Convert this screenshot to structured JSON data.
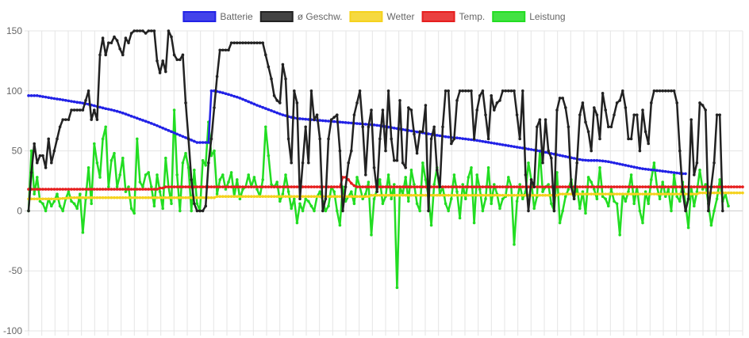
{
  "chart_data": {
    "type": "line",
    "legend_position": "top",
    "grid": true,
    "ylim": [
      -100,
      150
    ],
    "yticks": [
      -100,
      -50,
      0,
      50,
      100,
      150
    ],
    "xlabel": "",
    "ylabel": "",
    "title": "",
    "series": [
      {
        "name": "Batterie",
        "color": "#2222e6",
        "values": [
          96,
          96,
          96,
          96,
          95.6,
          95.2,
          94.8,
          94.4,
          94,
          93.6,
          93.2,
          92.9,
          92.5,
          92.1,
          91.7,
          91.3,
          90.9,
          90.5,
          90.2,
          89.8,
          89.3,
          88.8,
          88.2,
          87.6,
          87,
          86.4,
          85.8,
          85.2,
          84.7,
          84.2,
          83.6,
          83,
          82.3,
          81.5,
          80.7,
          79.8,
          78.9,
          78.1,
          77.2,
          76.3,
          75.5,
          74.7,
          73.8,
          72.9,
          72,
          71,
          70,
          69,
          68,
          67,
          66,
          65,
          64,
          63,
          62,
          61,
          60,
          59,
          58,
          57,
          57,
          57,
          57,
          57,
          100,
          100,
          99.5,
          99,
          98.4,
          97.7,
          97,
          96.3,
          95.5,
          94.8,
          94,
          93,
          92,
          91,
          90,
          89,
          88,
          87.1,
          86.2,
          85.3,
          84.4,
          83.5,
          82.6,
          81.7,
          80.8,
          80,
          79.3,
          78.6,
          78,
          77.5,
          77,
          76.8,
          76.6,
          76.4,
          76.2,
          76,
          75.8,
          75.6,
          75.4,
          75.2,
          75,
          74.8,
          74.6,
          74.4,
          74.2,
          74,
          73.8,
          73.6,
          73.4,
          73.2,
          73,
          72.8,
          72.6,
          72.4,
          72.2,
          72,
          71.8,
          71.6,
          71.3,
          71,
          70.6,
          70.2,
          69.8,
          69.4,
          69,
          68.6,
          68.2,
          67.8,
          67.4,
          67,
          66.6,
          66.2,
          65.8,
          65.4,
          65,
          64.6,
          64.2,
          63.8,
          63.4,
          63,
          62.6,
          62.2,
          61.8,
          61.5,
          61.2,
          61,
          60.8,
          60.5,
          60.2,
          59.9,
          59.6,
          59.3,
          59,
          58.7,
          58.3,
          57.9,
          57.5,
          57.1,
          56.7,
          56.3,
          55.9,
          55.5,
          55.1,
          54.7,
          54.3,
          53.9,
          53.5,
          53.1,
          52.7,
          52.3,
          51.9,
          51.5,
          51.1,
          50.7,
          50.3,
          49.8,
          49.3,
          48.8,
          48.3,
          47.8,
          47.3,
          46.8,
          46.3,
          45.8,
          45.3,
          44.8,
          44.3,
          43.8,
          43.3,
          42.8,
          42.4,
          42.2,
          42,
          42,
          42,
          42,
          41.8,
          41.6,
          41.3,
          41,
          40.5,
          40,
          39.5,
          39,
          38.5,
          38,
          37.5,
          37,
          36.5,
          36,
          35.5,
          35.1,
          34.8,
          34.5,
          34.2,
          34,
          33.7,
          33.4,
          33.1,
          32.8,
          32.5,
          32.2,
          31.9,
          31.6,
          31.3,
          31,
          31
        ]
      },
      {
        "name": "ø Geschw.",
        "color": "#222222",
        "values": [
          0,
          32,
          56,
          40,
          46,
          46,
          36,
          60,
          40,
          50,
          60,
          70,
          76,
          76,
          76,
          84,
          84,
          84,
          84,
          84,
          92,
          100,
          76,
          84,
          76,
          130,
          144,
          130,
          140,
          140,
          145,
          142,
          135,
          130,
          144,
          140,
          148,
          150,
          150,
          150,
          150,
          148,
          150,
          150,
          150,
          125,
          115,
          125,
          116,
          150,
          145,
          130,
          126,
          126,
          130,
          90,
          60,
          26,
          6,
          0,
          0,
          0,
          4,
          40,
          60,
          86,
          112,
          134,
          134,
          134,
          134,
          140,
          140,
          140,
          140,
          140,
          140,
          140,
          140,
          140,
          140,
          140,
          140,
          130,
          120,
          110,
          96,
          92,
          90,
          122,
          110,
          60,
          40,
          100,
          90,
          10,
          40,
          70,
          40,
          100,
          76,
          80,
          60,
          0,
          10,
          60,
          76,
          78,
          80,
          50,
          0,
          20,
          40,
          50,
          80,
          90,
          100,
          70,
          30,
          70,
          84,
          36,
          16,
          60,
          84,
          50,
          100,
          60,
          42,
          42,
          92,
          40,
          36,
          86,
          84,
          64,
          48,
          66,
          66,
          88,
          0,
          60,
          70,
          34,
          20,
          70,
          100,
          100,
          56,
          60,
          92,
          100,
          100,
          100,
          100,
          100,
          60,
          84,
          96,
          100,
          80,
          60,
          96,
          84,
          90,
          92,
          100,
          100,
          100,
          100,
          100,
          80,
          60,
          100,
          30,
          0,
          26,
          20,
          70,
          76,
          40,
          76,
          50,
          44,
          0,
          84,
          94,
          94,
          86,
          70,
          20,
          10,
          40,
          80,
          90,
          74,
          66,
          50,
          86,
          80,
          60,
          98,
          84,
          70,
          70,
          80,
          90,
          92,
          100,
          86,
          60,
          60,
          80,
          80,
          50,
          84,
          66,
          56,
          90,
          100,
          100,
          100,
          100,
          100,
          100,
          100,
          100,
          90,
          50,
          16,
          0,
          10,
          76,
          30,
          40,
          90,
          88,
          84,
          0,
          20,
          40,
          80,
          80,
          0
        ]
      },
      {
        "name": "Wetter",
        "color": "#f5d21e",
        "values": [
          10,
          10,
          10,
          10,
          10,
          10,
          10,
          10,
          10,
          10,
          10,
          10.2,
          10.4,
          10.6,
          10.8,
          11,
          11,
          11,
          11,
          11,
          11,
          11,
          11,
          11,
          11,
          11,
          11,
          11,
          11,
          11,
          11,
          11,
          11,
          11,
          11,
          11,
          11,
          11,
          11,
          11,
          11,
          11,
          11,
          11,
          11,
          11,
          11,
          11,
          11,
          11,
          11,
          11,
          11,
          11,
          11,
          11,
          11,
          11,
          11,
          11,
          11,
          11,
          11,
          11,
          11,
          11,
          12,
          12,
          12,
          12,
          12,
          12,
          12,
          12,
          12,
          12,
          12,
          12,
          12,
          12,
          12,
          12,
          12,
          12,
          12,
          12,
          12,
          12,
          12,
          12,
          12,
          12,
          12,
          12,
          12,
          12,
          12,
          12,
          12,
          12,
          12,
          12,
          12,
          12,
          12,
          12,
          12,
          12,
          12,
          12,
          12,
          12,
          12,
          12,
          12,
          12,
          12,
          12,
          12,
          12,
          13,
          13,
          13,
          13,
          13,
          13,
          13,
          13,
          13,
          13,
          13,
          13,
          13,
          13,
          13,
          13,
          13,
          13,
          13,
          13,
          13,
          13,
          13,
          13,
          13,
          13,
          13,
          13,
          13,
          13,
          13,
          13,
          13,
          13,
          13,
          13,
          13,
          13,
          13,
          13,
          13,
          13,
          13,
          13,
          13,
          13,
          13,
          13,
          13,
          13,
          13,
          13,
          13,
          13,
          13,
          13,
          13,
          13,
          13,
          13,
          13,
          13,
          13,
          13,
          13,
          13,
          14,
          14,
          14,
          14,
          14,
          14,
          14,
          14,
          14,
          14,
          14,
          14,
          14,
          14,
          14,
          14,
          14,
          14,
          14,
          14,
          14,
          14,
          14,
          14,
          14,
          14,
          14,
          14,
          14,
          14,
          14,
          14,
          14,
          14,
          14,
          14,
          14,
          14,
          14,
          14,
          14,
          14,
          14,
          14,
          14,
          14,
          14,
          14,
          14,
          15,
          15,
          15,
          15,
          15,
          15,
          15,
          15,
          15,
          15,
          15,
          15,
          15,
          15,
          15,
          15
        ]
      },
      {
        "name": "Temp.",
        "color": "#e61e1e",
        "values": [
          18,
          18,
          18,
          18,
          18,
          18,
          18,
          18,
          18,
          18,
          18,
          18,
          18,
          18,
          18,
          18,
          18,
          18,
          18,
          18,
          18,
          18,
          18,
          18,
          18,
          18,
          18,
          18,
          18,
          18,
          18,
          18,
          18,
          18,
          18,
          18,
          18,
          18,
          18,
          18,
          18,
          18,
          18,
          18,
          18,
          18,
          19,
          19,
          20,
          20,
          20,
          20,
          20,
          20,
          20,
          20,
          20,
          20,
          20,
          20,
          20,
          20,
          20,
          20,
          20,
          20,
          20,
          20,
          20,
          20,
          20,
          20,
          20,
          20,
          20,
          20,
          20,
          20,
          20,
          20,
          20,
          20,
          20,
          20,
          20,
          20,
          20,
          20,
          20,
          20,
          20,
          20,
          20,
          20,
          20,
          20,
          20,
          20,
          20,
          20,
          20,
          20,
          20,
          20,
          20,
          20,
          20,
          20,
          20,
          20,
          28,
          28,
          26,
          23,
          21,
          20,
          20,
          20,
          20,
          20,
          20,
          20,
          20,
          20,
          20,
          20,
          20,
          20,
          20,
          20,
          20,
          20,
          20,
          20,
          20,
          20,
          20,
          20,
          20,
          20,
          20,
          20,
          20,
          20,
          20,
          20,
          20,
          20,
          20,
          20,
          20,
          20,
          20,
          20,
          20,
          20,
          20,
          20,
          20,
          20,
          20,
          20,
          20,
          20,
          20,
          20,
          20,
          20,
          20,
          20,
          20,
          20,
          20,
          20,
          20,
          20,
          20,
          20,
          20,
          20,
          20,
          20,
          20,
          20,
          20,
          20,
          20,
          20,
          20,
          20,
          20,
          20,
          20,
          20,
          20,
          20,
          20,
          20,
          20,
          20,
          20,
          20,
          20,
          20,
          20,
          20,
          20,
          20,
          20,
          20,
          20,
          20,
          20,
          20,
          20,
          20,
          20,
          20,
          20,
          20,
          20,
          20,
          20,
          20,
          20,
          20,
          20,
          20,
          20,
          20,
          20,
          20,
          20,
          20,
          20,
          20,
          20,
          20,
          20,
          20,
          20,
          20,
          20,
          20,
          20,
          20,
          20,
          20,
          20,
          20,
          20
        ]
      },
      {
        "name": "Leistung",
        "color": "#22dd22",
        "values": [
          0,
          50,
          14,
          28,
          8,
          6,
          0,
          10,
          4,
          8,
          14,
          4,
          0,
          10,
          16,
          8,
          6,
          2,
          14,
          -18,
          10,
          36,
          6,
          56,
          40,
          28,
          60,
          70,
          20,
          42,
          48,
          20,
          30,
          44,
          16,
          20,
          2,
          -2,
          60,
          24,
          20,
          30,
          32,
          20,
          4,
          30,
          16,
          2,
          44,
          20,
          6,
          84,
          30,
          0,
          40,
          48,
          36,
          0,
          34,
          6,
          0,
          42,
          38,
          74,
          46,
          50,
          14,
          26,
          30,
          18,
          24,
          32,
          12,
          26,
          10,
          18,
          20,
          30,
          20,
          28,
          18,
          12,
          26,
          70,
          46,
          22,
          20,
          24,
          8,
          14,
          30,
          16,
          2,
          10,
          -10,
          6,
          0,
          10,
          8,
          4,
          0,
          12,
          16,
          8,
          0,
          4,
          20,
          16,
          0,
          -12,
          20,
          8,
          12,
          16,
          6,
          28,
          20,
          10,
          14,
          24,
          -20,
          10,
          18,
          26,
          6,
          12,
          30,
          10,
          22,
          -64,
          20,
          14,
          28,
          8,
          34,
          22,
          6,
          0,
          40,
          26,
          12,
          -12,
          22,
          36,
          14,
          20,
          6,
          0,
          10,
          30,
          16,
          -6,
          22,
          10,
          28,
          36,
          -10,
          30,
          18,
          0,
          10,
          36,
          6,
          22,
          14,
          2,
          10,
          12,
          28,
          20,
          -28,
          8,
          22,
          10,
          16,
          40,
          26,
          2,
          12,
          50,
          16,
          20,
          22,
          6,
          0,
          32,
          -10,
          0,
          12,
          18,
          26,
          10,
          20,
          2,
          16,
          -2,
          28,
          24,
          18,
          10,
          36,
          12,
          10,
          4,
          18,
          8,
          6,
          -20,
          14,
          8,
          16,
          30,
          6,
          20,
          0,
          -10,
          16,
          6,
          26,
          40,
          20,
          10,
          24,
          12,
          18,
          0,
          30,
          12,
          8,
          24,
          6,
          -14,
          20,
          4,
          16,
          34,
          18,
          22,
          6,
          -12,
          0,
          10,
          26,
          8,
          14,
          4
        ]
      }
    ]
  }
}
